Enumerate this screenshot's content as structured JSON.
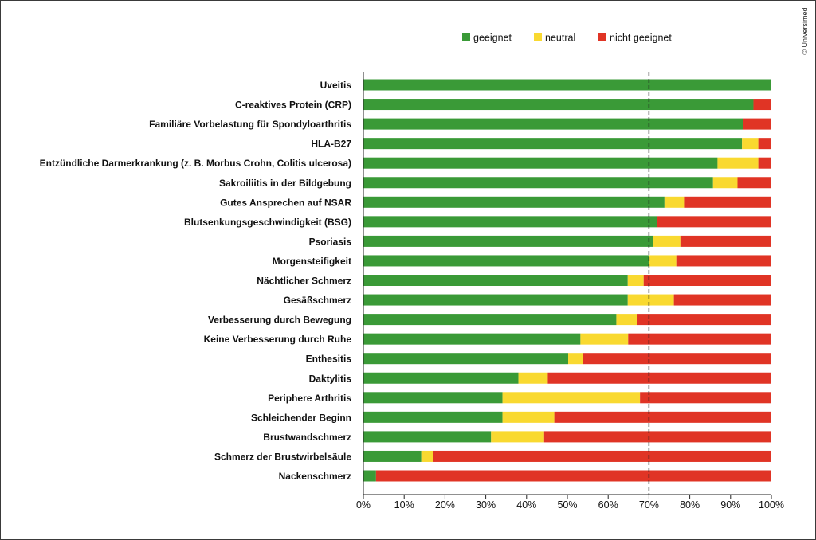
{
  "credit": "© Universimed",
  "chart_data": {
    "type": "bar",
    "orientation": "horizontal",
    "stacked": true,
    "xlim": [
      0,
      100
    ],
    "x_ticks": [
      "0%",
      "10%",
      "20%",
      "30%",
      "40%",
      "50%",
      "60%",
      "70%",
      "80%",
      "90%",
      "100%"
    ],
    "reference_line": 70,
    "legend_position": "top-right",
    "categories": [
      "Uveitis",
      "C-reaktives Protein (CRP)",
      "Familiäre Vorbelastung für Spondyloarthritis",
      "HLA-B27",
      "Entzündliche Darmerkrankung (z. B. Morbus Crohn, Colitis ulcerosa)",
      "Sakroiliitis in der Bildgebung",
      "Gutes Ansprechen auf NSAR",
      "Blutsenkungsgeschwindigkeit (BSG)",
      "Psoriasis",
      "Morgensteifigkeit",
      "Nächtlicher Schmerz",
      "Gesäßschmerz",
      "Verbesserung durch Bewegung",
      "Keine Verbesserung durch Ruhe",
      "Enthesitis",
      "Daktylitis",
      "Periphere Arthritis",
      "Schleichender Beginn",
      "Brustwandschmerz",
      "Schmerz der Brustwirbelsäule",
      "Nackenschmerz"
    ],
    "series": [
      {
        "name": "geeignet",
        "color": "#3a9a37",
        "values": [
          100,
          95.6,
          93,
          92.8,
          86.8,
          85.7,
          73.8,
          72,
          71,
          70,
          64.8,
          64.8,
          62,
          53.2,
          50.2,
          38,
          34.1,
          34.1,
          31.3,
          14.2,
          3.1
        ]
      },
      {
        "name": "neutral",
        "color": "#f9d930",
        "values": [
          0,
          0,
          0,
          4,
          10,
          6,
          4.8,
          0,
          6.7,
          6.7,
          3.9,
          11.3,
          5,
          11.7,
          3.7,
          7.2,
          33.7,
          12.7,
          13,
          2.8,
          0
        ]
      },
      {
        "name": "nicht geeignet",
        "color": "#e03425",
        "values": [
          0,
          4.4,
          7,
          3.2,
          3.2,
          8.3,
          21.4,
          28,
          22.3,
          23.3,
          31.3,
          23.9,
          33,
          35.1,
          46.1,
          54.8,
          32.2,
          53.2,
          55.7,
          83,
          96.9
        ]
      }
    ]
  }
}
